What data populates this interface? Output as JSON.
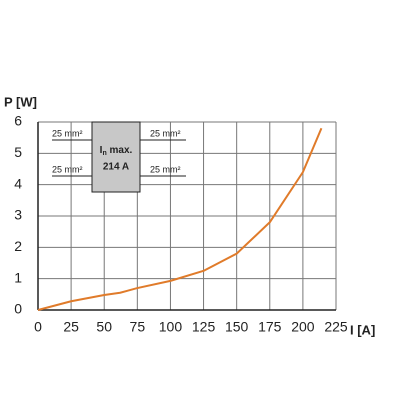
{
  "chart_data": {
    "type": "line",
    "x_label": "I [A]",
    "y_label": "P [W]",
    "x": [
      0,
      25,
      50,
      62,
      75,
      100,
      125,
      150,
      175,
      200,
      214
    ],
    "series": [
      {
        "color": "#e07b2a",
        "values": [
          0,
          0.28,
          0.48,
          0.55,
          0.7,
          0.93,
          1.25,
          1.8,
          2.8,
          4.4,
          5.8
        ]
      }
    ],
    "xlim": [
      0,
      225
    ],
    "xticks": [
      0,
      25,
      50,
      75,
      100,
      125,
      150,
      175,
      200,
      225
    ],
    "ylim": [
      0,
      6
    ],
    "yticks": [
      0,
      1,
      2,
      3,
      4,
      5,
      6
    ],
    "grid": true,
    "inset": {
      "symbol": "I",
      "subscript": "n",
      "suffix": " max.",
      "current": "214 A",
      "wires": [
        "25 mm²",
        "25 mm²",
        "25 mm²",
        "25 mm²"
      ]
    }
  }
}
